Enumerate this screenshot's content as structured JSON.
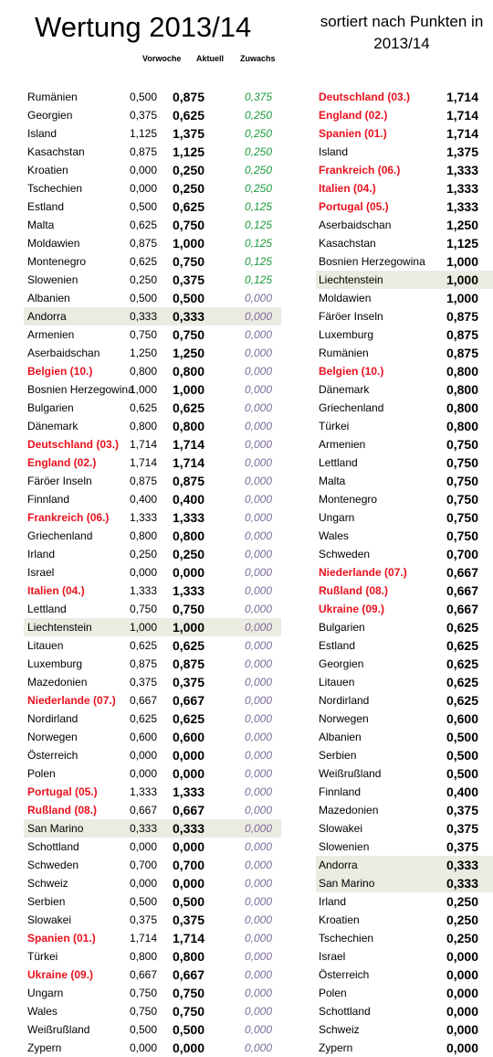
{
  "title": "Wertung 2013/14",
  "subtitle": "sortiert nach Punkten in 2013/14",
  "headers": {
    "vorwoche": "Vorwoche",
    "aktuell": "Aktuell",
    "zuwachs": "Zuwachs"
  },
  "colors": {
    "highlight_text": "#e8121e",
    "gain_positive": "#1a9b3c",
    "gain_zero": "#7a6c9a",
    "row_highlight": "#ecebe2"
  },
  "left_rows": [
    {
      "name": "Rumänien",
      "prev": "0,500",
      "cur": "0,875",
      "gain": "0,375"
    },
    {
      "name": "Georgien",
      "prev": "0,375",
      "cur": "0,625",
      "gain": "0,250"
    },
    {
      "name": "Island",
      "prev": "1,125",
      "cur": "1,375",
      "gain": "0,250"
    },
    {
      "name": "Kasachstan",
      "prev": "0,875",
      "cur": "1,125",
      "gain": "0,250"
    },
    {
      "name": "Kroatien",
      "prev": "0,000",
      "cur": "0,250",
      "gain": "0,250"
    },
    {
      "name": "Tschechien",
      "prev": "0,000",
      "cur": "0,250",
      "gain": "0,250"
    },
    {
      "name": "Estland",
      "prev": "0,500",
      "cur": "0,625",
      "gain": "0,125"
    },
    {
      "name": "Malta",
      "prev": "0,625",
      "cur": "0,750",
      "gain": "0,125"
    },
    {
      "name": "Moldawien",
      "prev": "0,875",
      "cur": "1,000",
      "gain": "0,125"
    },
    {
      "name": "Montenegro",
      "prev": "0,625",
      "cur": "0,750",
      "gain": "0,125"
    },
    {
      "name": "Slowenien",
      "prev": "0,250",
      "cur": "0,375",
      "gain": "0,125"
    },
    {
      "name": "Albanien",
      "prev": "0,500",
      "cur": "0,500",
      "gain": "0,000"
    },
    {
      "name": "Andorra",
      "prev": "0,333",
      "cur": "0,333",
      "gain": "0,000",
      "hl": true
    },
    {
      "name": "Armenien",
      "prev": "0,750",
      "cur": "0,750",
      "gain": "0,000"
    },
    {
      "name": "Aserbaidschan",
      "prev": "1,250",
      "cur": "1,250",
      "gain": "0,000"
    },
    {
      "name": "Belgien (10.)",
      "prev": "0,800",
      "cur": "0,800",
      "gain": "0,000",
      "red": true
    },
    {
      "name": "Bosnien Herzegowina",
      "prev": "1,000",
      "cur": "1,000",
      "gain": "0,000"
    },
    {
      "name": "Bulgarien",
      "prev": "0,625",
      "cur": "0,625",
      "gain": "0,000"
    },
    {
      "name": "Dänemark",
      "prev": "0,800",
      "cur": "0,800",
      "gain": "0,000"
    },
    {
      "name": "Deutschland (03.)",
      "prev": "1,714",
      "cur": "1,714",
      "gain": "0,000",
      "red": true
    },
    {
      "name": "England (02.)",
      "prev": "1,714",
      "cur": "1,714",
      "gain": "0,000",
      "red": true
    },
    {
      "name": "Färöer Inseln",
      "prev": "0,875",
      "cur": "0,875",
      "gain": "0,000"
    },
    {
      "name": "Finnland",
      "prev": "0,400",
      "cur": "0,400",
      "gain": "0,000"
    },
    {
      "name": "Frankreich (06.)",
      "prev": "1,333",
      "cur": "1,333",
      "gain": "0,000",
      "red": true
    },
    {
      "name": "Griechenland",
      "prev": "0,800",
      "cur": "0,800",
      "gain": "0,000"
    },
    {
      "name": "Irland",
      "prev": "0,250",
      "cur": "0,250",
      "gain": "0,000"
    },
    {
      "name": "Israel",
      "prev": "0,000",
      "cur": "0,000",
      "gain": "0,000"
    },
    {
      "name": "Italien (04.)",
      "prev": "1,333",
      "cur": "1,333",
      "gain": "0,000",
      "red": true
    },
    {
      "name": "Lettland",
      "prev": "0,750",
      "cur": "0,750",
      "gain": "0,000"
    },
    {
      "name": "Liechtenstein",
      "prev": "1,000",
      "cur": "1,000",
      "gain": "0,000",
      "hl": true
    },
    {
      "name": "Litauen",
      "prev": "0,625",
      "cur": "0,625",
      "gain": "0,000"
    },
    {
      "name": "Luxemburg",
      "prev": "0,875",
      "cur": "0,875",
      "gain": "0,000"
    },
    {
      "name": "Mazedonien",
      "prev": "0,375",
      "cur": "0,375",
      "gain": "0,000"
    },
    {
      "name": "Niederlande (07.)",
      "prev": "0,667",
      "cur": "0,667",
      "gain": "0,000",
      "red": true
    },
    {
      "name": "Nordirland",
      "prev": "0,625",
      "cur": "0,625",
      "gain": "0,000"
    },
    {
      "name": "Norwegen",
      "prev": "0,600",
      "cur": "0,600",
      "gain": "0,000"
    },
    {
      "name": "Österreich",
      "prev": "0,000",
      "cur": "0,000",
      "gain": "0,000"
    },
    {
      "name": "Polen",
      "prev": "0,000",
      "cur": "0,000",
      "gain": "0,000"
    },
    {
      "name": "Portugal (05.)",
      "prev": "1,333",
      "cur": "1,333",
      "gain": "0,000",
      "red": true
    },
    {
      "name": "Rußland (08.)",
      "prev": "0,667",
      "cur": "0,667",
      "gain": "0,000",
      "red": true
    },
    {
      "name": "San Marino",
      "prev": "0,333",
      "cur": "0,333",
      "gain": "0,000",
      "hl": true
    },
    {
      "name": "Schottland",
      "prev": "0,000",
      "cur": "0,000",
      "gain": "0,000"
    },
    {
      "name": "Schweden",
      "prev": "0,700",
      "cur": "0,700",
      "gain": "0,000"
    },
    {
      "name": "Schweiz",
      "prev": "0,000",
      "cur": "0,000",
      "gain": "0,000"
    },
    {
      "name": "Serbien",
      "prev": "0,500",
      "cur": "0,500",
      "gain": "0,000"
    },
    {
      "name": "Slowakei",
      "prev": "0,375",
      "cur": "0,375",
      "gain": "0,000"
    },
    {
      "name": "Spanien (01.)",
      "prev": "1,714",
      "cur": "1,714",
      "gain": "0,000",
      "red": true
    },
    {
      "name": "Türkei",
      "prev": "0,800",
      "cur": "0,800",
      "gain": "0,000"
    },
    {
      "name": "Ukraine (09.)",
      "prev": "0,667",
      "cur": "0,667",
      "gain": "0,000",
      "red": true
    },
    {
      "name": "Ungarn",
      "prev": "0,750",
      "cur": "0,750",
      "gain": "0,000"
    },
    {
      "name": "Wales",
      "prev": "0,750",
      "cur": "0,750",
      "gain": "0,000"
    },
    {
      "name": "Weißrußland",
      "prev": "0,500",
      "cur": "0,500",
      "gain": "0,000"
    },
    {
      "name": "Zypern",
      "prev": "0,000",
      "cur": "0,000",
      "gain": "0,000"
    }
  ],
  "right_rows": [
    {
      "name": "Deutschland (03.)",
      "pts": "1,714",
      "red": true
    },
    {
      "name": "England (02.)",
      "pts": "1,714",
      "red": true
    },
    {
      "name": "Spanien (01.)",
      "pts": "1,714",
      "red": true
    },
    {
      "name": "Island",
      "pts": "1,375"
    },
    {
      "name": "Frankreich (06.)",
      "pts": "1,333",
      "red": true
    },
    {
      "name": "Italien (04.)",
      "pts": "1,333",
      "red": true
    },
    {
      "name": "Portugal (05.)",
      "pts": "1,333",
      "red": true
    },
    {
      "name": "Aserbaidschan",
      "pts": "1,250"
    },
    {
      "name": "Kasachstan",
      "pts": "1,125"
    },
    {
      "name": "Bosnien Herzegowina",
      "pts": "1,000"
    },
    {
      "name": "Liechtenstein",
      "pts": "1,000",
      "hl": true
    },
    {
      "name": "Moldawien",
      "pts": "1,000"
    },
    {
      "name": "Färöer Inseln",
      "pts": "0,875"
    },
    {
      "name": "Luxemburg",
      "pts": "0,875"
    },
    {
      "name": "Rumänien",
      "pts": "0,875"
    },
    {
      "name": "Belgien (10.)",
      "pts": "0,800",
      "red": true
    },
    {
      "name": "Dänemark",
      "pts": "0,800"
    },
    {
      "name": "Griechenland",
      "pts": "0,800"
    },
    {
      "name": "Türkei",
      "pts": "0,800"
    },
    {
      "name": "Armenien",
      "pts": "0,750"
    },
    {
      "name": "Lettland",
      "pts": "0,750"
    },
    {
      "name": "Malta",
      "pts": "0,750"
    },
    {
      "name": "Montenegro",
      "pts": "0,750"
    },
    {
      "name": "Ungarn",
      "pts": "0,750"
    },
    {
      "name": "Wales",
      "pts": "0,750"
    },
    {
      "name": "Schweden",
      "pts": "0,700"
    },
    {
      "name": "Niederlande (07.)",
      "pts": "0,667",
      "red": true
    },
    {
      "name": "Rußland (08.)",
      "pts": "0,667",
      "red": true
    },
    {
      "name": "Ukraine (09.)",
      "pts": "0,667",
      "red": true
    },
    {
      "name": "Bulgarien",
      "pts": "0,625"
    },
    {
      "name": "Estland",
      "pts": "0,625"
    },
    {
      "name": "Georgien",
      "pts": "0,625"
    },
    {
      "name": "Litauen",
      "pts": "0,625"
    },
    {
      "name": "Nordirland",
      "pts": "0,625"
    },
    {
      "name": "Norwegen",
      "pts": "0,600"
    },
    {
      "name": "Albanien",
      "pts": "0,500"
    },
    {
      "name": "Serbien",
      "pts": "0,500"
    },
    {
      "name": "Weißrußland",
      "pts": "0,500"
    },
    {
      "name": "Finnland",
      "pts": "0,400"
    },
    {
      "name": "Mazedonien",
      "pts": "0,375"
    },
    {
      "name": "Slowakei",
      "pts": "0,375"
    },
    {
      "name": "Slowenien",
      "pts": "0,375"
    },
    {
      "name": "Andorra",
      "pts": "0,333",
      "hl": true
    },
    {
      "name": "San Marino",
      "pts": "0,333",
      "hl": true
    },
    {
      "name": "Irland",
      "pts": "0,250"
    },
    {
      "name": "Kroatien",
      "pts": "0,250"
    },
    {
      "name": "Tschechien",
      "pts": "0,250"
    },
    {
      "name": "Israel",
      "pts": "0,000"
    },
    {
      "name": "Österreich",
      "pts": "0,000"
    },
    {
      "name": "Polen",
      "pts": "0,000"
    },
    {
      "name": "Schottland",
      "pts": "0,000"
    },
    {
      "name": "Schweiz",
      "pts": "0,000"
    },
    {
      "name": "Zypern",
      "pts": "0,000"
    }
  ]
}
